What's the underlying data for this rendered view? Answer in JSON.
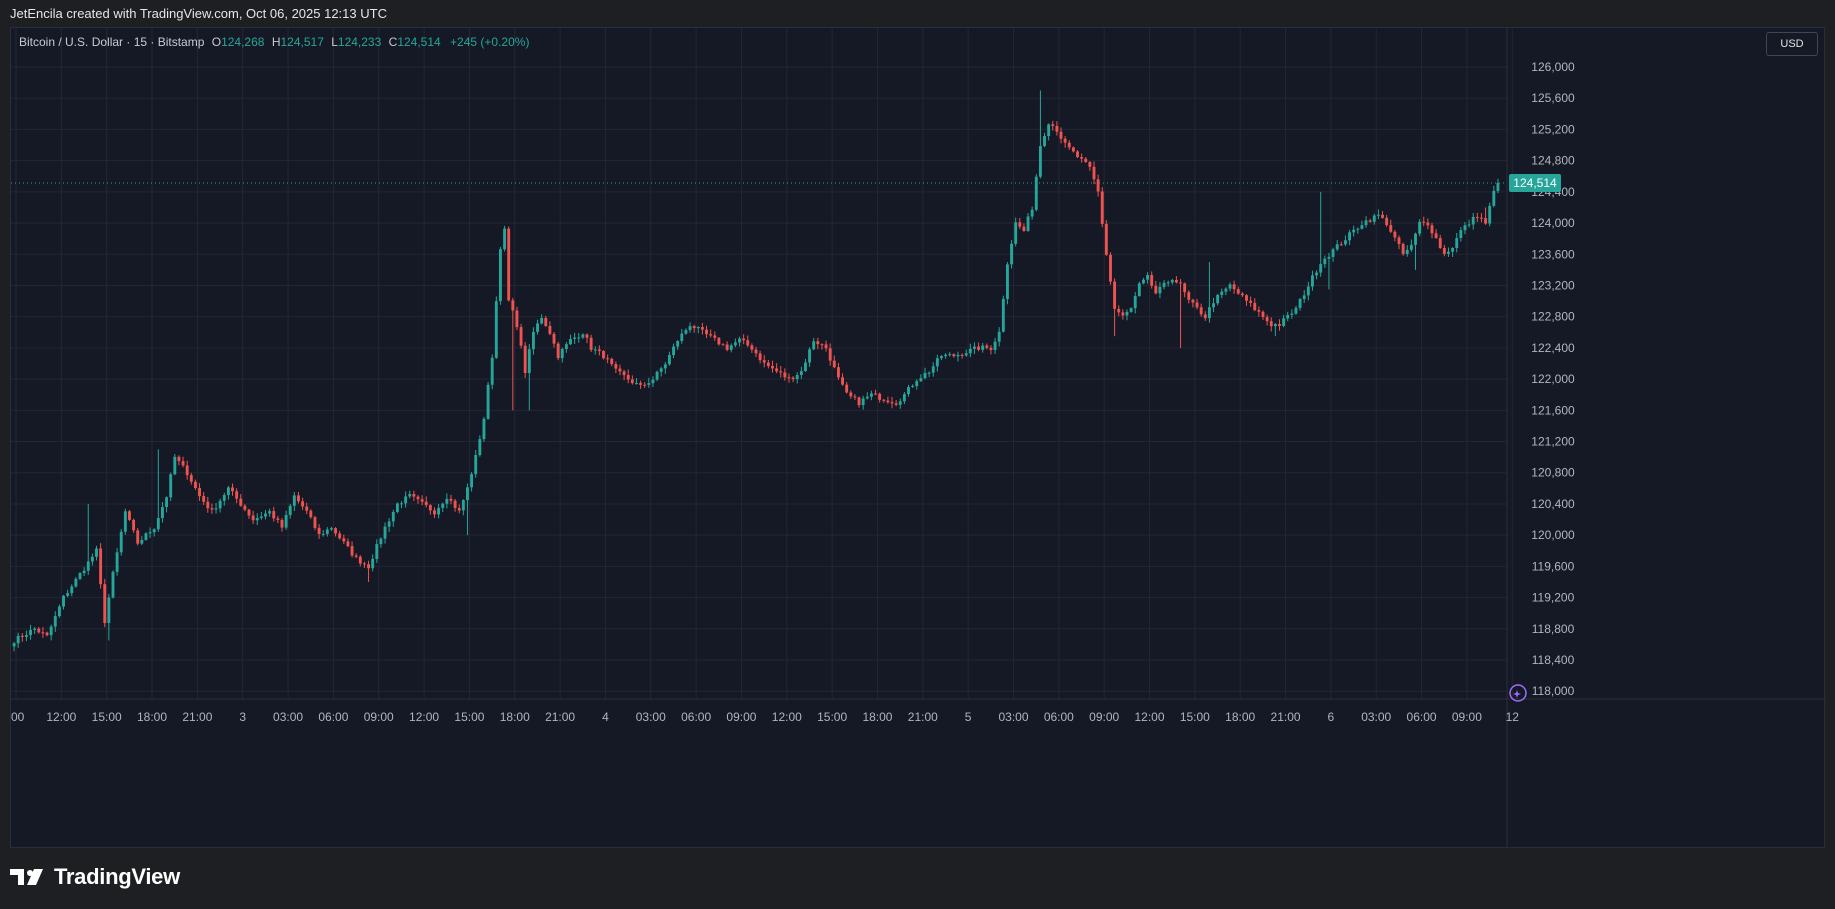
{
  "caption": "JetEncila created with TradingView.com, Oct 06, 2025 12:13 UTC",
  "legend": {
    "symbol": "Bitcoin / U.S. Dollar · 15 · Bitstamp",
    "o_label": "O",
    "o_value": "124,268",
    "h_label": "H",
    "h_value": "124,517",
    "l_label": "L",
    "l_value": "124,233",
    "c_label": "C",
    "c_value": "124,514",
    "change": "+245 (+0.20%)"
  },
  "currency_label": "USD",
  "last_price_label": "124,514",
  "brand_name": "TradingView",
  "colors": {
    "up": "#26a69a",
    "down": "#ef5350",
    "grid": "#232733",
    "background": "#151925"
  },
  "chart_data": {
    "type": "candlestick",
    "interval": "15",
    "y_axis": {
      "ylim": [
        117900,
        126500
      ],
      "tick_labels": [
        "126,000",
        "125,600",
        "125,200",
        "124,800",
        "124,400",
        "124,000",
        "123,600",
        "123,200",
        "122,800",
        "122,400",
        "122,000",
        "121,600",
        "121,200",
        "120,800",
        "120,400",
        "120,000",
        "119,600",
        "119,200",
        "118,800",
        "118,400",
        "118,000"
      ],
      "tick_values": [
        126000,
        125600,
        125200,
        124800,
        124400,
        124000,
        123600,
        123200,
        122800,
        122400,
        122000,
        121600,
        121200,
        120800,
        120400,
        120000,
        119600,
        119200,
        118800,
        118400,
        118000
      ]
    },
    "x_axis": {
      "tick_labels": [
        ":00",
        "12:00",
        "15:00",
        "18:00",
        "21:00",
        "3",
        "03:00",
        "06:00",
        "09:00",
        "12:00",
        "15:00",
        "18:00",
        "21:00",
        "4",
        "03:00",
        "06:00",
        "09:00",
        "12:00",
        "15:00",
        "18:00",
        "21:00",
        "5",
        "03:00",
        "06:00",
        "09:00",
        "12:00",
        "15:00",
        "18:00",
        "21:00",
        "6",
        "03:00",
        "06:00",
        "09:00",
        "12"
      ],
      "tick_bar_index": [
        0,
        11,
        22,
        33,
        44,
        55,
        66,
        77,
        88,
        99,
        110,
        121,
        132,
        143,
        154,
        165,
        176,
        187,
        198,
        209,
        220,
        231,
        242,
        253,
        264,
        275,
        286,
        297,
        308,
        319,
        330,
        341,
        352,
        363
      ]
    },
    "grid": true,
    "last_price": 124514,
    "price_path": [
      [
        0,
        118650
      ],
      [
        5,
        118800
      ],
      [
        8,
        118700
      ],
      [
        12,
        119200
      ],
      [
        16,
        119500
      ],
      [
        20,
        119800
      ],
      [
        22,
        118900
      ],
      [
        24,
        119500
      ],
      [
        27,
        120300
      ],
      [
        30,
        119900
      ],
      [
        34,
        120100
      ],
      [
        37,
        120500
      ],
      [
        39,
        121000
      ],
      [
        42,
        120800
      ],
      [
        45,
        120500
      ],
      [
        48,
        120300
      ],
      [
        52,
        120600
      ],
      [
        55,
        120400
      ],
      [
        58,
        120200
      ],
      [
        62,
        120300
      ],
      [
        65,
        120100
      ],
      [
        68,
        120500
      ],
      [
        71,
        120300
      ],
      [
        74,
        120000
      ],
      [
        77,
        120100
      ],
      [
        80,
        119900
      ],
      [
        83,
        119700
      ],
      [
        86,
        119600
      ],
      [
        90,
        120100
      ],
      [
        93,
        120400
      ],
      [
        96,
        120500
      ],
      [
        99,
        120400
      ],
      [
        102,
        120300
      ],
      [
        105,
        120500
      ],
      [
        108,
        120300
      ],
      [
        110,
        120600
      ],
      [
        112,
        121000
      ],
      [
        114,
        121500
      ],
      [
        116,
        122300
      ],
      [
        118,
        123700
      ],
      [
        119,
        123900
      ],
      [
        120,
        123000
      ],
      [
        122,
        122700
      ],
      [
        124,
        122100
      ],
      [
        126,
        122600
      ],
      [
        128,
        122800
      ],
      [
        130,
        122600
      ],
      [
        132,
        122300
      ],
      [
        135,
        122500
      ],
      [
        138,
        122600
      ],
      [
        140,
        122400
      ],
      [
        143,
        122300
      ],
      [
        146,
        122100
      ],
      [
        149,
        122000
      ],
      [
        152,
        121900
      ],
      [
        155,
        122000
      ],
      [
        158,
        122200
      ],
      [
        161,
        122500
      ],
      [
        164,
        122700
      ],
      [
        167,
        122600
      ],
      [
        170,
        122500
      ],
      [
        173,
        122400
      ],
      [
        176,
        122500
      ],
      [
        179,
        122400
      ],
      [
        182,
        122200
      ],
      [
        185,
        122100
      ],
      [
        188,
        122000
      ],
      [
        191,
        122100
      ],
      [
        194,
        122500
      ],
      [
        197,
        122400
      ],
      [
        200,
        122000
      ],
      [
        202,
        121800
      ],
      [
        205,
        121700
      ],
      [
        208,
        121800
      ],
      [
        211,
        121750
      ],
      [
        214,
        121700
      ],
      [
        216,
        121800
      ],
      [
        219,
        122000
      ],
      [
        222,
        122100
      ],
      [
        225,
        122300
      ],
      [
        228,
        122300
      ],
      [
        231,
        122350
      ],
      [
        234,
        122400
      ],
      [
        237,
        122400
      ],
      [
        239,
        122600
      ],
      [
        241,
        123500
      ],
      [
        243,
        124000
      ],
      [
        245,
        123900
      ],
      [
        247,
        124200
      ],
      [
        249,
        125000
      ],
      [
        251,
        125300
      ],
      [
        253,
        125200
      ],
      [
        255,
        125000
      ],
      [
        257,
        124900
      ],
      [
        259,
        124800
      ],
      [
        261,
        124700
      ],
      [
        263,
        124400
      ],
      [
        265,
        123600
      ],
      [
        267,
        122900
      ],
      [
        269,
        122800
      ],
      [
        271,
        122900
      ],
      [
        273,
        123200
      ],
      [
        275,
        123300
      ],
      [
        277,
        123100
      ],
      [
        279,
        123200
      ],
      [
        281,
        123300
      ],
      [
        283,
        123200
      ],
      [
        285,
        123000
      ],
      [
        287,
        122900
      ],
      [
        289,
        122800
      ],
      [
        291,
        123000
      ],
      [
        293,
        123100
      ],
      [
        295,
        123200
      ],
      [
        297,
        123100
      ],
      [
        299,
        123000
      ],
      [
        301,
        122900
      ],
      [
        303,
        122800
      ],
      [
        305,
        122700
      ],
      [
        307,
        122700
      ],
      [
        309,
        122800
      ],
      [
        311,
        122900
      ],
      [
        313,
        123100
      ],
      [
        315,
        123300
      ],
      [
        317,
        123500
      ],
      [
        319,
        123600
      ],
      [
        321,
        123700
      ],
      [
        323,
        123800
      ],
      [
        325,
        123900
      ],
      [
        327,
        124000
      ],
      [
        329,
        124050
      ],
      [
        331,
        124100
      ],
      [
        333,
        124000
      ],
      [
        335,
        123800
      ],
      [
        337,
        123600
      ],
      [
        339,
        123700
      ],
      [
        341,
        124000
      ],
      [
        343,
        124000
      ],
      [
        345,
        123800
      ],
      [
        347,
        123600
      ],
      [
        349,
        123700
      ],
      [
        351,
        123900
      ],
      [
        353,
        124000
      ],
      [
        355,
        124100
      ],
      [
        357,
        124000
      ],
      [
        358,
        124200
      ],
      [
        359,
        124400
      ],
      [
        360,
        124514
      ]
    ],
    "spikes": [
      [
        23,
        118650,
        "low"
      ],
      [
        18,
        120400,
        "high"
      ],
      [
        35,
        121100,
        "high"
      ],
      [
        86,
        119400,
        "low"
      ],
      [
        110,
        120000,
        "low"
      ],
      [
        119,
        123950,
        "high"
      ],
      [
        121,
        121600,
        "low"
      ],
      [
        125,
        121600,
        "low"
      ],
      [
        249,
        125700,
        "high"
      ],
      [
        267,
        122550,
        "low"
      ],
      [
        283,
        122400,
        "low"
      ],
      [
        290,
        123500,
        "high"
      ],
      [
        306,
        122550,
        "low"
      ],
      [
        317,
        124400,
        "high"
      ],
      [
        319,
        123150,
        "low"
      ],
      [
        340,
        123400,
        "low"
      ],
      [
        357,
        124200,
        "high"
      ]
    ],
    "bar_count": 361
  }
}
